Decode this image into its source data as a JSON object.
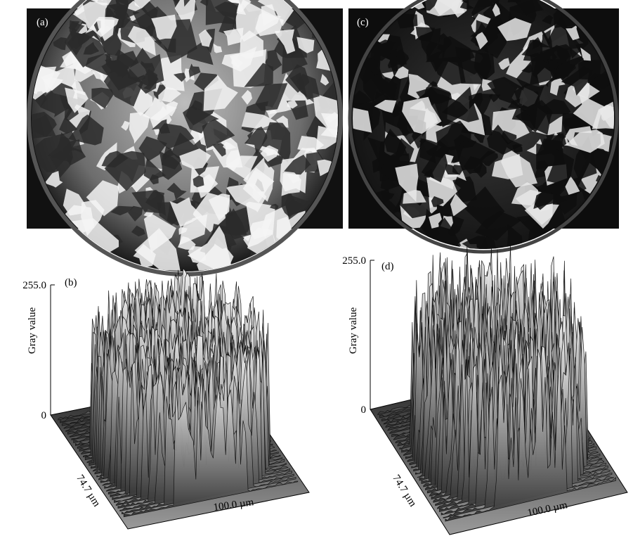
{
  "panels": [
    {
      "label": "(a)"
    },
    {
      "label": "(c)"
    }
  ],
  "plots": [
    {
      "label": "(b)",
      "z_max": "255.0",
      "z_min": "0",
      "z_label": "Gray value",
      "y_label": "74.7 µm",
      "x_label": "100.0 µm"
    },
    {
      "label": "(d)",
      "z_max": "255.0",
      "z_min": "0",
      "z_label": "Gray value",
      "y_label": "74.7 µm",
      "x_label": "100.0 µm"
    }
  ]
}
